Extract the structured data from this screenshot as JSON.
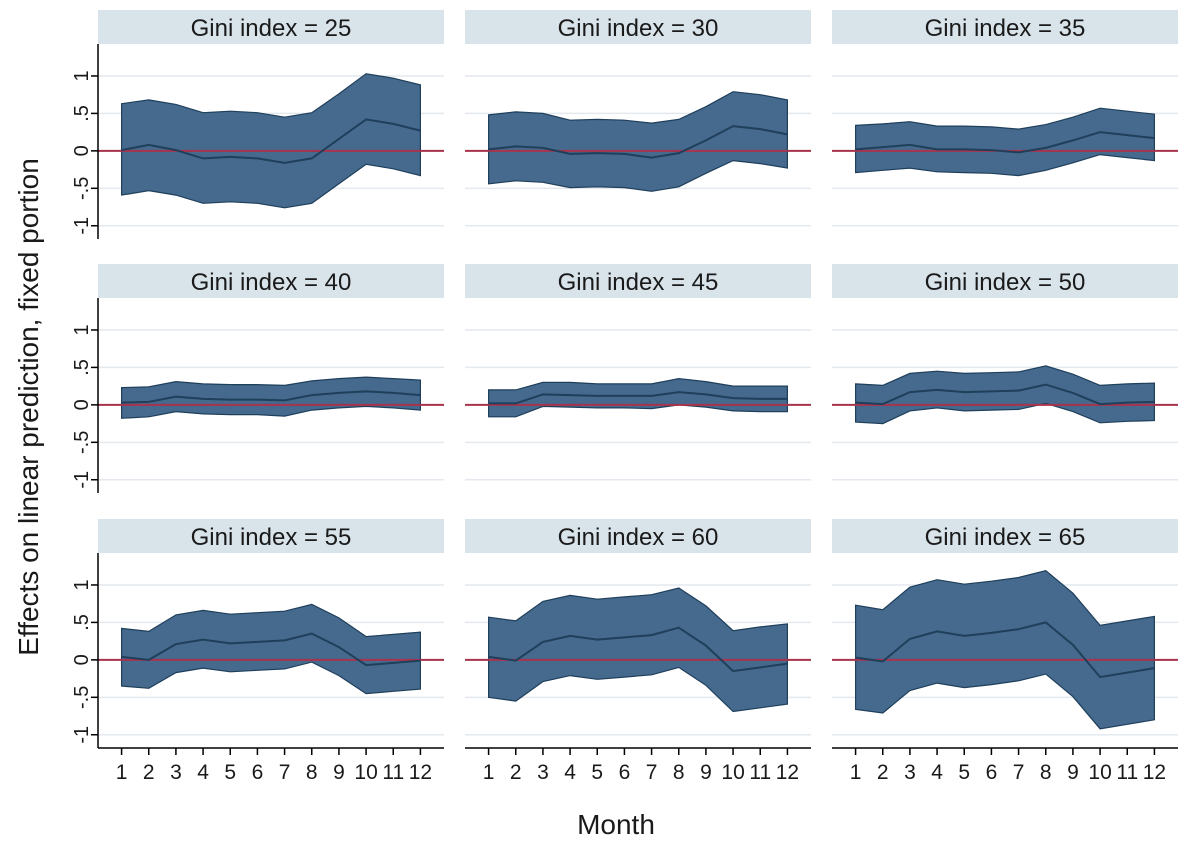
{
  "chart_data": {
    "type": "area",
    "ylabel": "Effects on linear prediction, fixed portion",
    "xlabel": "Month",
    "x": [
      1,
      2,
      3,
      4,
      5,
      6,
      7,
      8,
      9,
      10,
      11,
      12
    ],
    "x_tick_labels": [
      "1",
      "2",
      "3",
      "4",
      "5",
      "6",
      "7",
      "8",
      "9",
      "10",
      "11",
      "12"
    ],
    "y_ticks": [
      -1,
      -0.5,
      0,
      0.5,
      1
    ],
    "y_tick_labels": [
      "-1",
      "-.5",
      "0",
      ".5",
      "1"
    ],
    "ylim": [
      -1.15,
      1.4
    ],
    "xlim": [
      0.5,
      12.5
    ],
    "grid": true,
    "reference_line": 0,
    "colors": {
      "band": "#456a8e",
      "line": "#1f3f5b",
      "reference": "#a8334d",
      "strip": "#d8e3ea",
      "grid": "#e3e9ee"
    },
    "panels": [
      {
        "title": "Gini index = 25",
        "estimate": [
          0.01,
          0.08,
          0.01,
          -0.1,
          -0.08,
          -0.1,
          -0.16,
          -0.1,
          0.16,
          0.42,
          0.36,
          0.27
        ],
        "lower": [
          -0.59,
          -0.53,
          -0.59,
          -0.7,
          -0.68,
          -0.7,
          -0.76,
          -0.7,
          -0.44,
          -0.18,
          -0.24,
          -0.33
        ],
        "upper": [
          0.63,
          0.68,
          0.62,
          0.51,
          0.53,
          0.51,
          0.45,
          0.51,
          0.76,
          1.03,
          0.97,
          0.88
        ]
      },
      {
        "title": "Gini index = 30",
        "estimate": [
          0.02,
          0.06,
          0.04,
          -0.04,
          -0.03,
          -0.04,
          -0.09,
          -0.03,
          0.14,
          0.33,
          0.29,
          0.22
        ],
        "lower": [
          -0.44,
          -0.4,
          -0.42,
          -0.49,
          -0.48,
          -0.49,
          -0.54,
          -0.48,
          -0.3,
          -0.13,
          -0.17,
          -0.23
        ],
        "upper": [
          0.48,
          0.52,
          0.5,
          0.41,
          0.42,
          0.41,
          0.37,
          0.42,
          0.59,
          0.79,
          0.75,
          0.68
        ]
      },
      {
        "title": "Gini index = 35",
        "estimate": [
          0.02,
          0.05,
          0.08,
          0.02,
          0.02,
          0.01,
          -0.02,
          0.04,
          0.14,
          0.25,
          0.21,
          0.17
        ],
        "lower": [
          -0.29,
          -0.26,
          -0.23,
          -0.28,
          -0.29,
          -0.3,
          -0.33,
          -0.26,
          -0.16,
          -0.05,
          -0.09,
          -0.13
        ],
        "upper": [
          0.34,
          0.36,
          0.39,
          0.33,
          0.33,
          0.32,
          0.29,
          0.35,
          0.45,
          0.57,
          0.53,
          0.49
        ]
      },
      {
        "title": "Gini index = 40",
        "estimate": [
          0.03,
          0.04,
          0.11,
          0.08,
          0.07,
          0.07,
          0.06,
          0.13,
          0.16,
          0.18,
          0.16,
          0.13
        ],
        "lower": [
          -0.18,
          -0.16,
          -0.09,
          -0.12,
          -0.13,
          -0.13,
          -0.15,
          -0.07,
          -0.04,
          -0.02,
          -0.04,
          -0.07
        ],
        "upper": [
          0.23,
          0.24,
          0.31,
          0.28,
          0.27,
          0.27,
          0.26,
          0.32,
          0.35,
          0.37,
          0.35,
          0.33
        ]
      },
      {
        "title": "Gini index = 45",
        "estimate": [
          0.02,
          0.02,
          0.14,
          0.13,
          0.12,
          0.12,
          0.12,
          0.17,
          0.14,
          0.09,
          0.08,
          0.08
        ],
        "lower": [
          -0.16,
          -0.16,
          -0.02,
          -0.03,
          -0.04,
          -0.04,
          -0.05,
          0.0,
          -0.03,
          -0.08,
          -0.09,
          -0.09
        ],
        "upper": [
          0.2,
          0.2,
          0.3,
          0.3,
          0.28,
          0.28,
          0.28,
          0.35,
          0.31,
          0.25,
          0.25,
          0.25
        ]
      },
      {
        "title": "Gini index = 50",
        "estimate": [
          0.03,
          0.01,
          0.17,
          0.2,
          0.17,
          0.18,
          0.19,
          0.27,
          0.16,
          0.01,
          0.03,
          0.04
        ],
        "lower": [
          -0.23,
          -0.25,
          -0.08,
          -0.04,
          -0.08,
          -0.07,
          -0.06,
          0.02,
          -0.09,
          -0.24,
          -0.22,
          -0.21
        ],
        "upper": [
          0.28,
          0.26,
          0.42,
          0.45,
          0.42,
          0.43,
          0.44,
          0.52,
          0.41,
          0.26,
          0.28,
          0.29
        ]
      },
      {
        "title": "Gini index = 55",
        "estimate": [
          0.04,
          0.0,
          0.21,
          0.27,
          0.22,
          0.24,
          0.26,
          0.35,
          0.17,
          -0.07,
          -0.04,
          -0.01
        ],
        "lower": [
          -0.35,
          -0.38,
          -0.17,
          -0.11,
          -0.16,
          -0.14,
          -0.12,
          -0.03,
          -0.21,
          -0.45,
          -0.42,
          -0.39
        ],
        "upper": [
          0.42,
          0.38,
          0.6,
          0.66,
          0.61,
          0.63,
          0.65,
          0.74,
          0.56,
          0.31,
          0.34,
          0.37
        ]
      },
      {
        "title": "Gini index = 60",
        "estimate": [
          0.04,
          -0.01,
          0.24,
          0.32,
          0.27,
          0.3,
          0.33,
          0.43,
          0.19,
          -0.15,
          -0.1,
          -0.05
        ],
        "lower": [
          -0.5,
          -0.55,
          -0.29,
          -0.21,
          -0.26,
          -0.23,
          -0.2,
          -0.1,
          -0.34,
          -0.69,
          -0.64,
          -0.59
        ],
        "upper": [
          0.57,
          0.52,
          0.78,
          0.86,
          0.81,
          0.84,
          0.87,
          0.96,
          0.72,
          0.39,
          0.44,
          0.48
        ]
      },
      {
        "title": "Gini index = 65",
        "estimate": [
          0.03,
          -0.02,
          0.28,
          0.38,
          0.32,
          0.36,
          0.41,
          0.5,
          0.2,
          -0.23,
          -0.17,
          -0.11
        ],
        "lower": [
          -0.66,
          -0.71,
          -0.41,
          -0.31,
          -0.37,
          -0.33,
          -0.28,
          -0.19,
          -0.49,
          -0.92,
          -0.86,
          -0.8
        ],
        "upper": [
          0.73,
          0.67,
          0.97,
          1.07,
          1.01,
          1.05,
          1.1,
          1.19,
          0.89,
          0.46,
          0.52,
          0.58
        ]
      }
    ]
  }
}
